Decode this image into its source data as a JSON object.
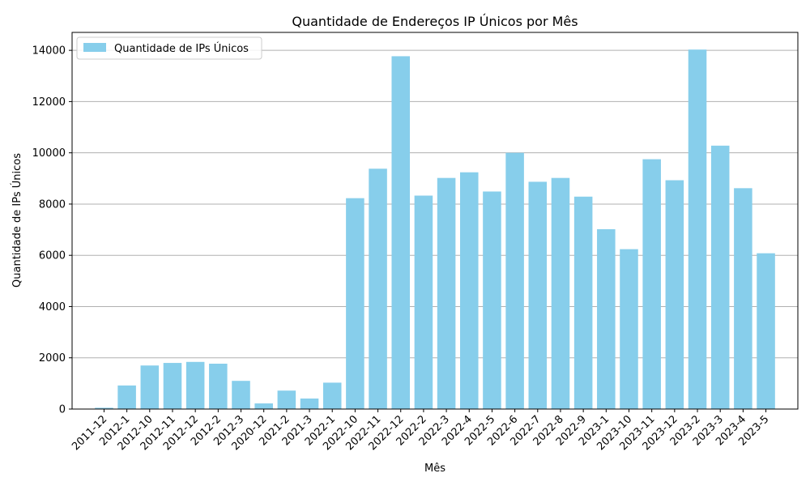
{
  "chart_data": {
    "type": "bar",
    "title": "Quantidade de Endereços IP Únicos por Mês",
    "xlabel": "Mês",
    "ylabel": "Quantidade de IPs Únicos",
    "ylim": [
      0,
      14700
    ],
    "yticks": [
      0,
      2000,
      4000,
      6000,
      8000,
      10000,
      12000,
      14000
    ],
    "grid": "y",
    "legend_position": "top-left",
    "bar_color": "#87ceeb",
    "series": [
      {
        "name": "Quantidade de IPs Únicos",
        "values": [
          50,
          920,
          1700,
          1800,
          1840,
          1770,
          1100,
          220,
          720,
          410,
          1030,
          8230,
          9380,
          13770,
          8330,
          9020,
          9240,
          8490,
          10000,
          8870,
          9020,
          8290,
          7020,
          6240,
          9750,
          8930,
          14030,
          10280,
          8620,
          6080
        ]
      }
    ],
    "categories": [
      "2011-12",
      "2012-1",
      "2012-10",
      "2012-11",
      "2012-12",
      "2012-2",
      "2012-3",
      "2020-12",
      "2021-2",
      "2021-3",
      "2022-1",
      "2022-10",
      "2022-11",
      "2022-12",
      "2022-2",
      "2022-3",
      "2022-4",
      "2022-5",
      "2022-6",
      "2022-7",
      "2022-8",
      "2022-9",
      "2023-1",
      "2023-10",
      "2023-11",
      "2023-12",
      "2023-2",
      "2023-3",
      "2023-4",
      "2023-5"
    ]
  }
}
